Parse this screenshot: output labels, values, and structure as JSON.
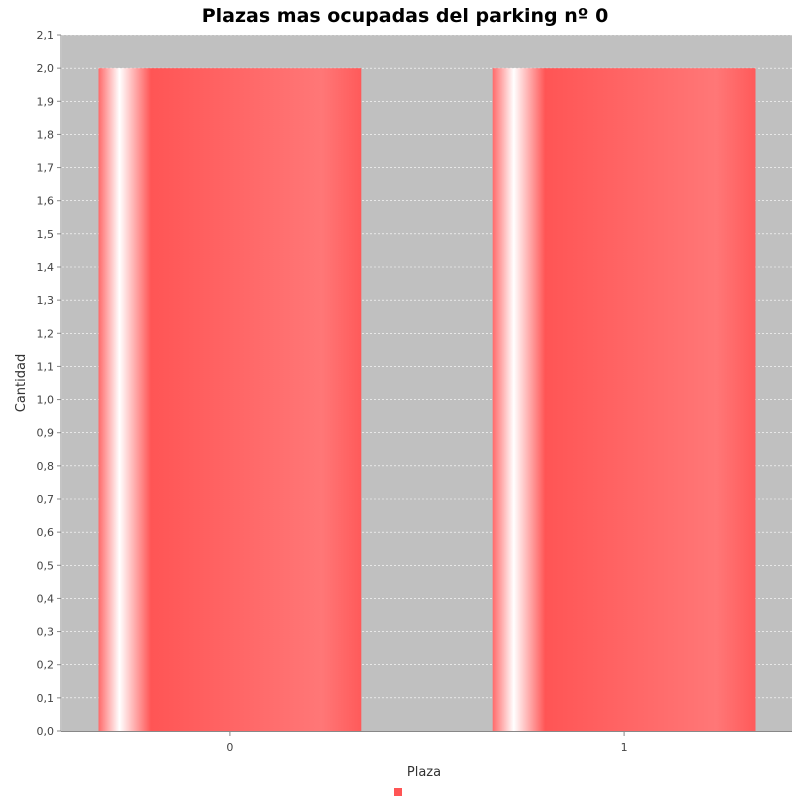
{
  "chart_data": {
    "type": "bar",
    "title": "Plazas mas ocupadas del parking nº 0",
    "xlabel": "Plaza",
    "ylabel": "Cantidad",
    "categories": [
      "0",
      "1"
    ],
    "series": [
      {
        "values": [
          2.0,
          2.0
        ]
      }
    ],
    "ylim": [
      0.0,
      2.1
    ],
    "yticks": [
      "0,0",
      "0,1",
      "0,2",
      "0,3",
      "0,4",
      "0,5",
      "0,6",
      "0,7",
      "0,8",
      "0,9",
      "1,0",
      "1,1",
      "1,2",
      "1,3",
      "1,4",
      "1,5",
      "1,6",
      "1,7",
      "1,8",
      "1,9",
      "2,0",
      "2,1"
    ],
    "grid": true,
    "legend_position": "bottom",
    "colors": {
      "bar": "#ff5555",
      "plot_background": "#c0c0c0",
      "gridline": "#ffffff"
    }
  }
}
